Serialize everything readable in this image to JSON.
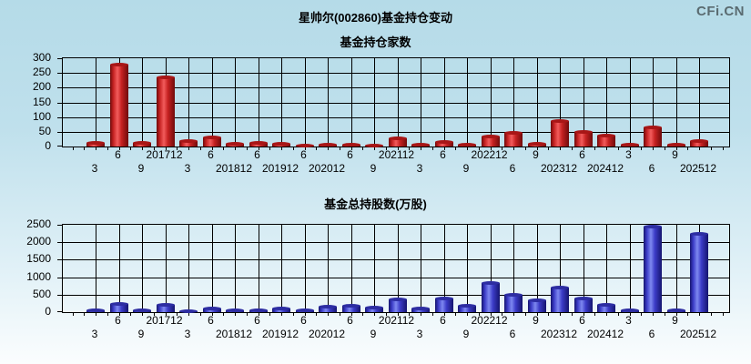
{
  "page": {
    "title": "星帅尔(002860)基金持仓变动",
    "watermark": "CFi.CN"
  },
  "colors": {
    "background_top": "#b5dbe8",
    "background_bottom": "#fbfdfe",
    "grid": "#000000",
    "text": "#000000",
    "watermark": "#5a6b70",
    "red_bar": "#c62222",
    "blue_bar": "#3c3cc8"
  },
  "chart_data": [
    {
      "type": "bar",
      "title": "基金持仓家数",
      "categories": [
        "3",
        "6",
        "9",
        "201712",
        "3",
        "6",
        "201812",
        "6",
        "201912",
        "6",
        "202012",
        "6",
        "9",
        "202112",
        "3",
        "6",
        "9",
        "202212",
        "6",
        "9",
        "202312",
        "6",
        "202412",
        "3",
        "6",
        "9",
        "202512"
      ],
      "values": [
        11,
        277,
        13,
        236,
        18,
        32,
        10,
        12,
        10,
        4,
        5,
        7,
        2,
        29,
        5,
        16,
        5,
        35,
        45,
        9,
        88,
        50,
        38,
        6,
        65,
        6,
        18
      ],
      "y_ticks": [
        300,
        250,
        200,
        150,
        100,
        50,
        0
      ],
      "ylim": [
        0,
        300
      ],
      "xlabel": "",
      "ylabel": "",
      "grid": true,
      "legend_position": "none",
      "label_rows": "odd-index-upper-even-index-lower",
      "bar_colors": {
        "edge": "#6f0a0a",
        "mid": "#c62222",
        "highlight": "#f25c5c",
        "cap": "#a81616"
      }
    },
    {
      "type": "bar",
      "title": "基金总持股数(万股)",
      "categories": [
        "3",
        "6",
        "9",
        "201712",
        "3",
        "6",
        "201812",
        "6",
        "201912",
        "6",
        "202012",
        "6",
        "9",
        "202112",
        "3",
        "6",
        "9",
        "202212",
        "6",
        "9",
        "202312",
        "6",
        "202412",
        "3",
        "6",
        "9",
        "202512"
      ],
      "values": [
        40,
        240,
        60,
        220,
        35,
        95,
        45,
        55,
        105,
        45,
        150,
        175,
        125,
        370,
        100,
        400,
        190,
        840,
        490,
        350,
        700,
        400,
        200,
        40,
        2450,
        40,
        2230
      ],
      "y_ticks": [
        2500,
        2000,
        1500,
        1000,
        500,
        0
      ],
      "ylim": [
        0,
        2500
      ],
      "xlabel": "",
      "ylabel": "",
      "grid": true,
      "legend_position": "none",
      "label_rows": "odd-index-upper-even-index-lower",
      "bar_colors": {
        "edge": "#14146e",
        "mid": "#3c3cc8",
        "highlight": "#7d88f0",
        "cap": "#2d2da2"
      }
    }
  ]
}
